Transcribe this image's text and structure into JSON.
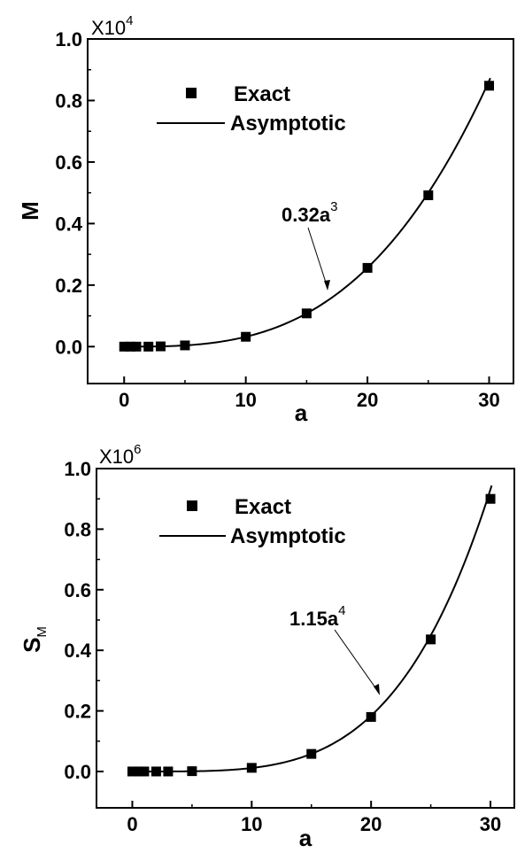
{
  "chart_data": [
    {
      "type": "scatter",
      "xlabel": "a",
      "ylabel": "M",
      "ylabel_sub": "",
      "multiplier_base": "X10",
      "multiplier_exp": "4",
      "xlim": [
        -3,
        32
      ],
      "ylim": [
        -0.12,
        1.0
      ],
      "xticks": [
        0,
        10,
        20,
        30
      ],
      "yticks": [
        0.0,
        0.2,
        0.4,
        0.6,
        0.8,
        1.0
      ],
      "xtick_labels": [
        "0",
        "10",
        "20",
        "30"
      ],
      "ytick_labels": [
        "0.0",
        "0.2",
        "0.4",
        "0.6",
        "0.8",
        "1.0"
      ],
      "legend": {
        "position": "top-left",
        "entries": [
          "Exact",
          "Asymptotic"
        ]
      },
      "annotation": {
        "base": "0.32a",
        "exp": "3"
      },
      "series": [
        {
          "name": "Exact",
          "style": "square-markers",
          "x": [
            0,
            0.5,
            1,
            2,
            3,
            5,
            10,
            15,
            20,
            25,
            30
          ],
          "y": [
            0.0,
            0.0,
            0.0,
            0.0,
            0.0008,
            0.004,
            0.032,
            0.108,
            0.256,
            0.492,
            0.848
          ]
        },
        {
          "name": "Asymptotic",
          "style": "line",
          "formula": "0.32*x^3 / 10000",
          "x_range": [
            0,
            30.1
          ]
        }
      ]
    },
    {
      "type": "scatter",
      "xlabel": "a",
      "ylabel": "S",
      "ylabel_sub": "M",
      "multiplier_base": "X10",
      "multiplier_exp": "6",
      "xlim": [
        -3,
        32
      ],
      "ylim": [
        -0.12,
        1.0
      ],
      "xticks": [
        0,
        10,
        20,
        30
      ],
      "yticks": [
        0.0,
        0.2,
        0.4,
        0.6,
        0.8,
        1.0
      ],
      "xtick_labels": [
        "0",
        "10",
        "20",
        "30"
      ],
      "ytick_labels": [
        "0.0",
        "0.2",
        "0.4",
        "0.6",
        "0.8",
        "1.0"
      ],
      "legend": {
        "position": "top-left",
        "entries": [
          "Exact",
          "Asymptotic"
        ]
      },
      "annotation": {
        "base": "1.15a",
        "exp": "4"
      },
      "series": [
        {
          "name": "Exact",
          "style": "square-markers",
          "x": [
            0,
            0.5,
            1,
            2,
            3,
            5,
            10,
            15,
            20,
            25,
            30
          ],
          "y": [
            0.0,
            0.0,
            0.0,
            0.0,
            0.0,
            0.001,
            0.012,
            0.058,
            0.18,
            0.436,
            0.9
          ]
        },
        {
          "name": "Asymptotic",
          "style": "line",
          "formula": "1.15*x^4 / 1000000",
          "x_range": [
            0,
            30.1
          ]
        }
      ]
    }
  ]
}
